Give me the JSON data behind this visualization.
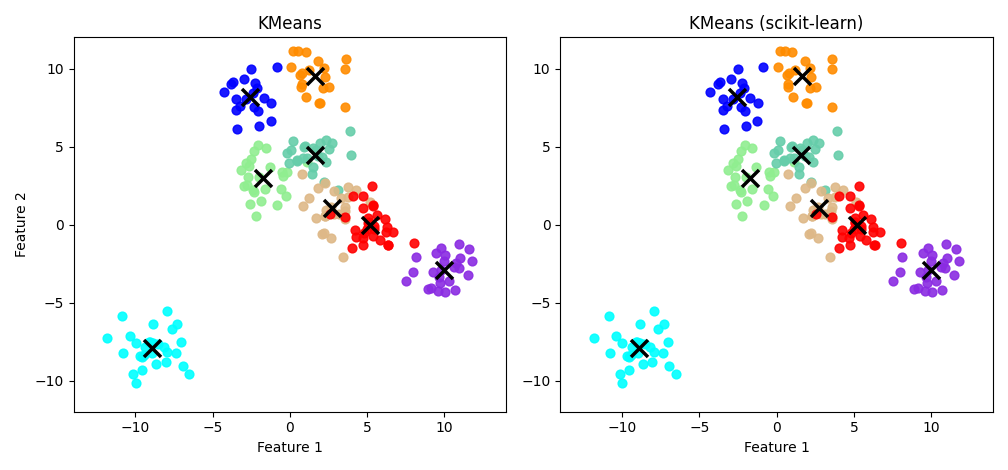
{
  "title1": "KMeans",
  "title2": "KMeans (scikit-learn)",
  "xlabel": "Feature 1",
  "ylabel": "Feature 2",
  "figsize": [
    10.08,
    4.7
  ],
  "dpi": 100,
  "dot_size": 40,
  "centroid_marker": "x",
  "centroid_color": "black",
  "centroid_size": 150,
  "centroid_linewidth": 2.5,
  "random_seed": 0,
  "cluster_centers": [
    [
      -9.0,
      -8.0
    ],
    [
      -2.5,
      8.0
    ],
    [
      1.5,
      9.0
    ],
    [
      -1.5,
      3.0
    ],
    [
      1.5,
      4.5
    ],
    [
      3.0,
      1.0
    ],
    [
      5.5,
      0.0
    ],
    [
      10.0,
      -2.5
    ]
  ],
  "n_per_cluster": [
    30,
    20,
    20,
    25,
    25,
    25,
    30,
    25
  ],
  "cluster_spread": 1.1,
  "true_colors": [
    "cyan",
    "blue",
    "darkorange",
    "lightgreen",
    "mediumaquamarine",
    "burlywood",
    "red",
    "blueviolet"
  ],
  "xlim": [
    -14,
    14
  ],
  "ylim": [
    -12,
    12
  ]
}
